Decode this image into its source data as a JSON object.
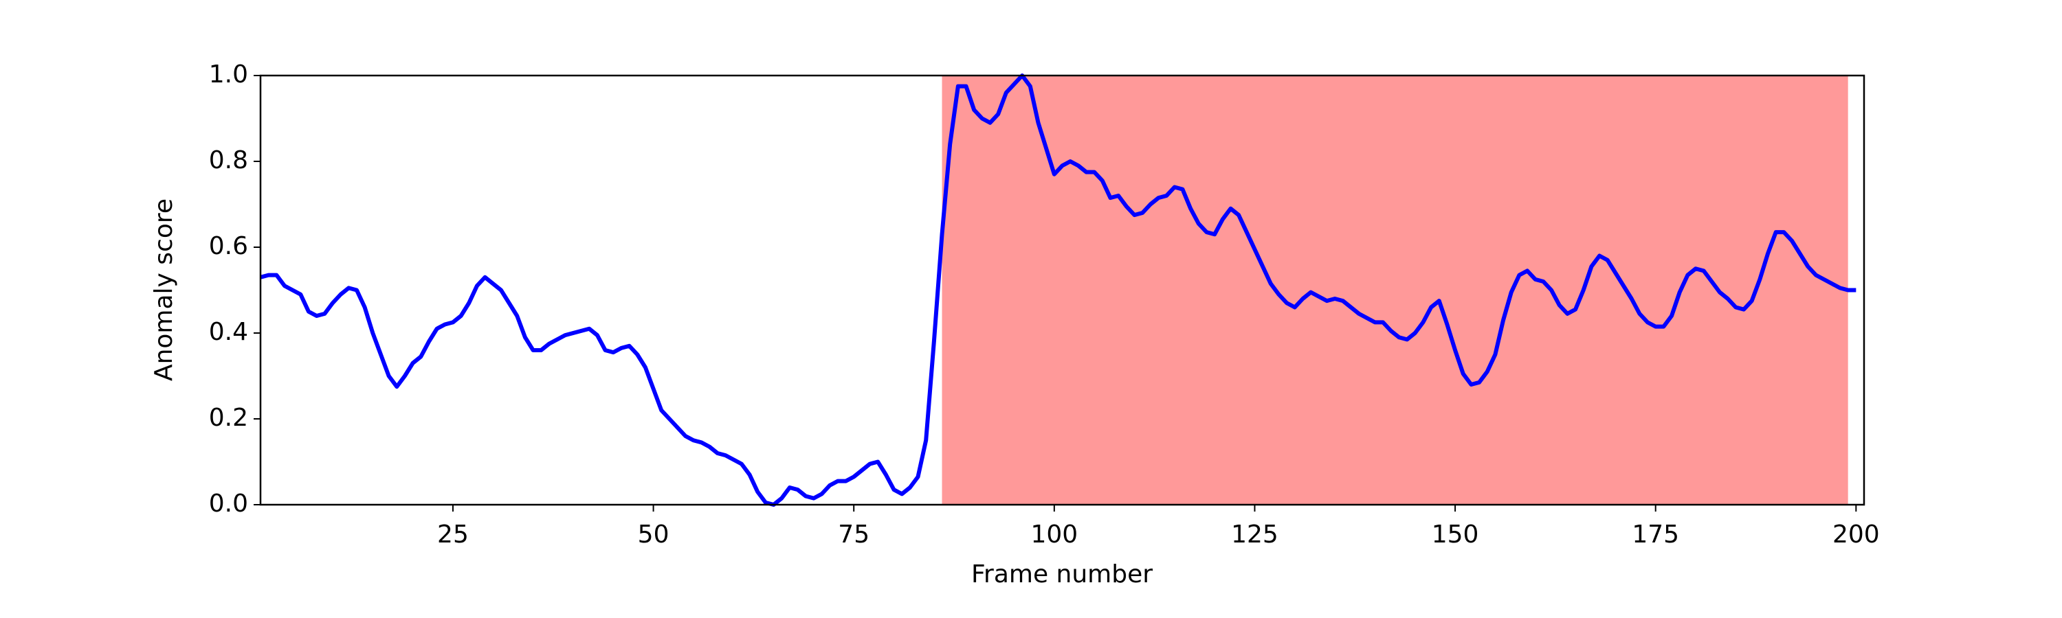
{
  "chart_data": {
    "type": "line",
    "x_label": "Frame number",
    "y_label": "Anomaly score",
    "x": [
      1,
      2,
      3,
      4,
      5,
      6,
      7,
      8,
      9,
      10,
      11,
      12,
      13,
      14,
      15,
      16,
      17,
      18,
      19,
      20,
      21,
      22,
      23,
      24,
      25,
      26,
      27,
      28,
      29,
      30,
      31,
      32,
      33,
      34,
      35,
      36,
      37,
      38,
      39,
      40,
      41,
      42,
      43,
      44,
      45,
      46,
      47,
      48,
      49,
      50,
      51,
      52,
      53,
      54,
      55,
      56,
      57,
      58,
      59,
      60,
      61,
      62,
      63,
      64,
      65,
      66,
      67,
      68,
      69,
      70,
      71,
      72,
      73,
      74,
      75,
      76,
      77,
      78,
      79,
      80,
      81,
      82,
      83,
      84,
      85,
      86,
      87,
      88,
      89,
      90,
      91,
      92,
      93,
      94,
      95,
      96,
      97,
      98,
      99,
      100,
      101,
      102,
      103,
      104,
      105,
      106,
      107,
      108,
      109,
      110,
      111,
      112,
      113,
      114,
      115,
      116,
      117,
      118,
      119,
      120,
      121,
      122,
      123,
      124,
      125,
      126,
      127,
      128,
      129,
      130,
      131,
      132,
      133,
      134,
      135,
      136,
      137,
      138,
      139,
      140,
      141,
      142,
      143,
      144,
      145,
      146,
      147,
      148,
      149,
      150,
      151,
      152,
      153,
      154,
      155,
      156,
      157,
      158,
      159,
      160,
      161,
      162,
      163,
      164,
      165,
      166,
      167,
      168,
      169,
      170,
      171,
      172,
      173,
      174,
      175,
      176,
      177,
      178,
      179,
      180,
      181,
      182,
      183,
      184,
      185,
      186,
      187,
      188,
      189,
      190,
      191,
      192,
      193,
      194,
      195,
      196,
      197,
      198,
      199,
      200
    ],
    "series": [
      {
        "color": "#0000ff",
        "values": [
          0.53,
          0.535,
          0.535,
          0.51,
          0.5,
          0.49,
          0.45,
          0.44,
          0.445,
          0.47,
          0.49,
          0.505,
          0.5,
          0.46,
          0.4,
          0.35,
          0.3,
          0.275,
          0.3,
          0.33,
          0.345,
          0.38,
          0.41,
          0.42,
          0.425,
          0.44,
          0.47,
          0.51,
          0.53,
          0.515,
          0.5,
          0.47,
          0.44,
          0.39,
          0.36,
          0.36,
          0.375,
          0.385,
          0.395,
          0.4,
          0.405,
          0.41,
          0.395,
          0.36,
          0.355,
          0.365,
          0.37,
          0.35,
          0.32,
          0.27,
          0.22,
          0.2,
          0.18,
          0.16,
          0.15,
          0.145,
          0.135,
          0.12,
          0.115,
          0.105,
          0.095,
          0.07,
          0.03,
          0.005,
          0.0,
          0.015,
          0.04,
          0.035,
          0.02,
          0.015,
          0.025,
          0.045,
          0.055,
          0.055,
          0.065,
          0.08,
          0.095,
          0.1,
          0.07,
          0.035,
          0.025,
          0.04,
          0.065,
          0.15,
          0.38,
          0.63,
          0.84,
          0.975,
          0.975,
          0.92,
          0.9,
          0.89,
          0.91,
          0.96,
          0.98,
          1.0,
          0.975,
          0.89,
          0.83,
          0.77,
          0.79,
          0.8,
          0.79,
          0.775,
          0.775,
          0.755,
          0.715,
          0.72,
          0.695,
          0.675,
          0.68,
          0.7,
          0.715,
          0.72,
          0.74,
          0.735,
          0.69,
          0.655,
          0.635,
          0.63,
          0.665,
          0.69,
          0.675,
          0.635,
          0.595,
          0.555,
          0.515,
          0.49,
          0.47,
          0.46,
          0.48,
          0.495,
          0.485,
          0.475,
          0.48,
          0.475,
          0.46,
          0.445,
          0.435,
          0.425,
          0.425,
          0.405,
          0.39,
          0.385,
          0.4,
          0.425,
          0.46,
          0.475,
          0.42,
          0.36,
          0.305,
          0.28,
          0.285,
          0.31,
          0.35,
          0.43,
          0.495,
          0.535,
          0.545,
          0.525,
          0.52,
          0.5,
          0.465,
          0.445,
          0.455,
          0.5,
          0.555,
          0.58,
          0.57,
          0.54,
          0.51,
          0.48,
          0.445,
          0.425,
          0.415,
          0.415,
          0.44,
          0.495,
          0.535,
          0.55,
          0.545,
          0.52,
          0.495,
          0.48,
          0.46,
          0.455,
          0.475,
          0.525,
          0.585,
          0.635,
          0.635,
          0.615,
          0.585,
          0.555,
          0.535,
          0.525,
          0.515,
          0.505,
          0.5,
          0.5
        ]
      }
    ],
    "shaded_region": [
      86,
      199
    ],
    "shaded_color": "#ff9999",
    "xlim": [
      1,
      201
    ],
    "ylim": [
      0,
      1
    ],
    "xticks": [
      25,
      50,
      75,
      100,
      125,
      150,
      175,
      200
    ],
    "yticks": [
      {
        "value": 0,
        "label": "0.0"
      },
      {
        "value": 0.2,
        "label": "0.2"
      },
      {
        "value": 0.4,
        "label": "0.4"
      },
      {
        "value": 0.6,
        "label": "0.6"
      },
      {
        "value": 0.8,
        "label": "0.8"
      },
      {
        "value": 1,
        "label": "1.0"
      }
    ]
  }
}
